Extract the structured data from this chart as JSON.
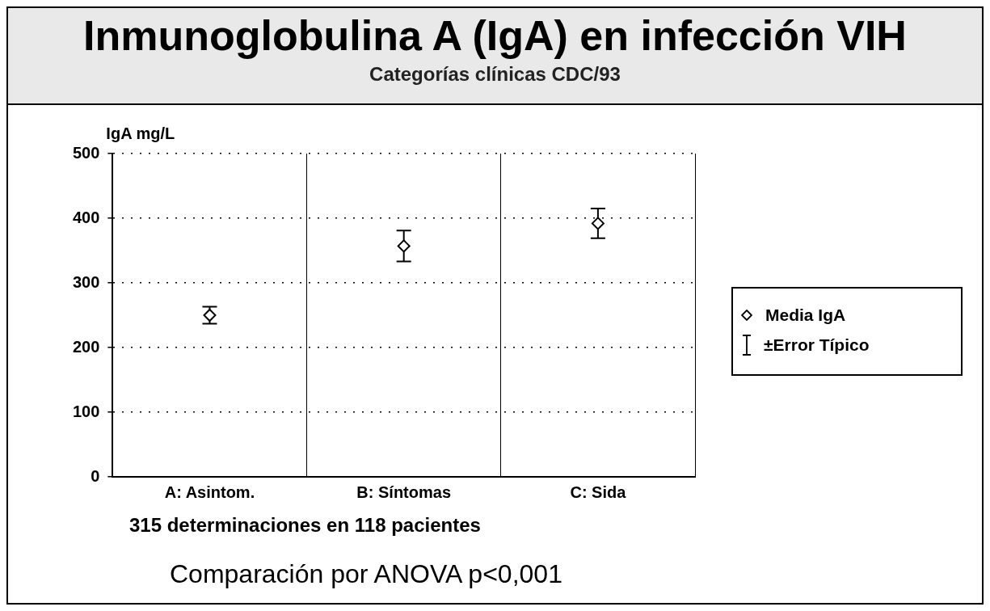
{
  "chart_data": {
    "type": "scatter",
    "title": "Inmunoglobulina A (IgA) en infección VIH",
    "subtitle": "Categorías clínicas CDC/93",
    "ylabel": "IgA mg/L",
    "categories": [
      "A: Asintom.",
      "B: Síntomas",
      "C: Sida"
    ],
    "series": [
      {
        "name": "Media IgA",
        "color": "#000000",
        "values": [
          250,
          357,
          392
        ],
        "errors": [
          13,
          24,
          23
        ]
      }
    ],
    "ylim": [
      0,
      500
    ],
    "yticks": [
      0,
      100,
      200,
      300,
      400,
      500
    ],
    "grid": true,
    "marker": "diamond",
    "legend": "right",
    "annotations": [
      "±Error Típico",
      "315 determinaciones en 118 pacientes",
      "Comparación por ANOVA p<0,001"
    ]
  }
}
